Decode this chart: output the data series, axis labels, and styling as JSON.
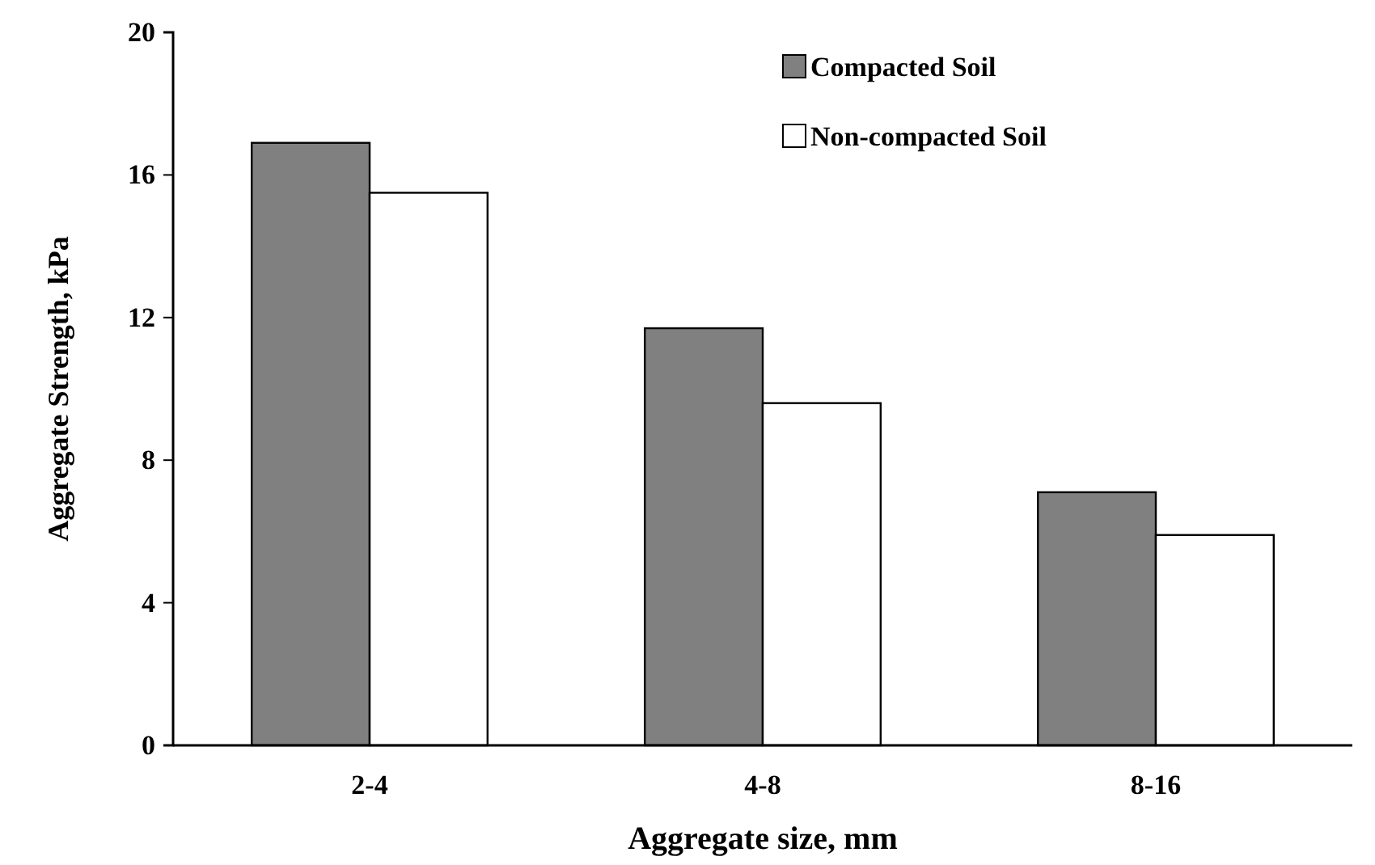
{
  "chart_data": {
    "type": "bar",
    "xlabel": "Aggregate size, mm",
    "ylabel": "Aggregate Strength, kPa",
    "categories": [
      "2-4",
      "4-8",
      "8-16"
    ],
    "series": [
      {
        "name": "Compacted Soil",
        "color": "#808080",
        "values": [
          16.9,
          11.7,
          7.1
        ]
      },
      {
        "name": "Non-compacted Soil",
        "color": "#ffffff",
        "values": [
          15.5,
          9.6,
          5.9
        ]
      }
    ],
    "ylim": [
      0,
      20
    ],
    "yticks": [
      0,
      4,
      8,
      12,
      16,
      20
    ],
    "grid": false,
    "legend": "top right"
  }
}
